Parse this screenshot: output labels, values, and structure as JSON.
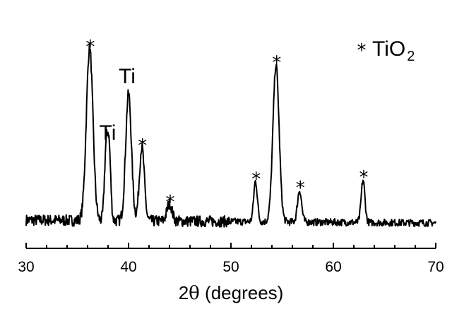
{
  "chart_data": {
    "type": "line",
    "title": "",
    "xlabel_prefix": "2",
    "xlabel_theta": "θ",
    "xlabel_suffix": " (degrees)",
    "xlim": [
      30,
      70
    ],
    "ylim": [
      0,
      100
    ],
    "x_ticks": [
      30,
      40,
      50,
      60,
      70
    ],
    "x_tick_labels": [
      "30",
      "40",
      "50",
      "60",
      "70"
    ],
    "legend": {
      "symbol": "*",
      "text": "TiO",
      "subscript": "2",
      "placement": "top-right"
    },
    "peaks": [
      {
        "x": 36.2,
        "height": 98,
        "width": 0.32,
        "label": "*"
      },
      {
        "x": 37.8,
        "height": 38,
        "width": 0.16,
        "label": ""
      },
      {
        "x": 38.1,
        "height": 40,
        "width": 0.16,
        "label": "Ti"
      },
      {
        "x": 40.0,
        "height": 72,
        "width": 0.28,
        "label": "Ti"
      },
      {
        "x": 41.3,
        "height": 42,
        "width": 0.24,
        "label": "*"
      },
      {
        "x": 44.0,
        "height": 10,
        "width": 0.25,
        "label": "*"
      },
      {
        "x": 52.4,
        "height": 23,
        "width": 0.18,
        "label": "*"
      },
      {
        "x": 54.4,
        "height": 89,
        "width": 0.3,
        "label": "*"
      },
      {
        "x": 56.7,
        "height": 18,
        "width": 0.2,
        "label": "*"
      },
      {
        "x": 62.9,
        "height": 24,
        "width": 0.18,
        "label": "*"
      }
    ]
  }
}
